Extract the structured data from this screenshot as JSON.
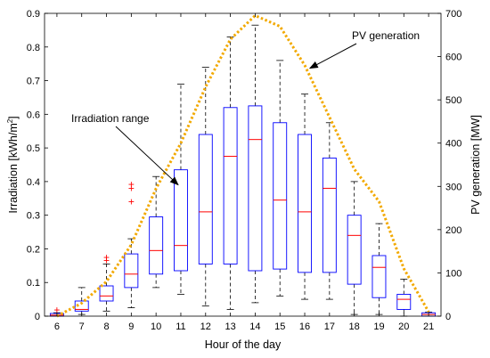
{
  "chart_data": {
    "type": "boxplot",
    "xlabel": "Hour of the day",
    "ylabel_left_prefix": "Irradiation [kWh/m",
    "ylabel_left_sup": "2",
    "ylabel_left_suffix": "]",
    "ylabel_right": "PV generation [MW]",
    "ylim_left": [
      0,
      0.9
    ],
    "ylim_right": [
      0,
      700
    ],
    "xlim": [
      5.5,
      21.5
    ],
    "x_ticks": [
      "6",
      "7",
      "8",
      "9",
      "10",
      "11",
      "12",
      "13",
      "14",
      "15",
      "16",
      "17",
      "18",
      "19",
      "20",
      "21"
    ],
    "y_left_ticks": [
      "0",
      "0.1",
      "0.2",
      "0.3",
      "0.4",
      "0.5",
      "0.6",
      "0.7",
      "0.8",
      "0.9"
    ],
    "y_right_ticks": [
      "0",
      "100",
      "200",
      "300",
      "400",
      "500",
      "600",
      "700"
    ],
    "grid": false,
    "colors": {
      "box": "#0000ff",
      "median": "#ff0000",
      "whisker": "#000000",
      "outlier": "#ff0000",
      "pv_line": "#f2a900"
    },
    "boxes": [
      {
        "hour": 6,
        "min": 0.0,
        "q1": 0.0,
        "median": 0.003,
        "q3": 0.008,
        "max": 0.01
      },
      {
        "hour": 7,
        "min": 0.005,
        "q1": 0.015,
        "median": 0.02,
        "q3": 0.045,
        "max": 0.085
      },
      {
        "hour": 8,
        "min": 0.015,
        "q1": 0.045,
        "median": 0.06,
        "q3": 0.09,
        "max": 0.155
      },
      {
        "hour": 9,
        "min": 0.025,
        "q1": 0.085,
        "median": 0.125,
        "q3": 0.185,
        "max": 0.23
      },
      {
        "hour": 10,
        "min": 0.085,
        "q1": 0.125,
        "median": 0.195,
        "q3": 0.295,
        "max": 0.415
      },
      {
        "hour": 11,
        "min": 0.065,
        "q1": 0.135,
        "median": 0.21,
        "q3": 0.435,
        "max": 0.69
      },
      {
        "hour": 12,
        "min": 0.03,
        "q1": 0.155,
        "median": 0.31,
        "q3": 0.54,
        "max": 0.74
      },
      {
        "hour": 13,
        "min": 0.02,
        "q1": 0.155,
        "median": 0.475,
        "q3": 0.62,
        "max": 0.83
      },
      {
        "hour": 14,
        "min": 0.04,
        "q1": 0.135,
        "median": 0.525,
        "q3": 0.625,
        "max": 0.865
      },
      {
        "hour": 15,
        "min": 0.06,
        "q1": 0.14,
        "median": 0.345,
        "q3": 0.575,
        "max": 0.76
      },
      {
        "hour": 16,
        "min": 0.05,
        "q1": 0.13,
        "median": 0.31,
        "q3": 0.54,
        "max": 0.66
      },
      {
        "hour": 17,
        "min": 0.05,
        "q1": 0.13,
        "median": 0.38,
        "q3": 0.47,
        "max": 0.575
      },
      {
        "hour": 18,
        "min": 0.005,
        "q1": 0.095,
        "median": 0.24,
        "q3": 0.3,
        "max": 0.4
      },
      {
        "hour": 19,
        "min": 0.005,
        "q1": 0.055,
        "median": 0.145,
        "q3": 0.18,
        "max": 0.275
      },
      {
        "hour": 20,
        "min": 0.0,
        "q1": 0.02,
        "median": 0.05,
        "q3": 0.065,
        "max": 0.11
      },
      {
        "hour": 21,
        "min": 0.0,
        "q1": 0.0,
        "median": 0.005,
        "q3": 0.01,
        "max": 0.012
      }
    ],
    "outliers": [
      {
        "hour": 6,
        "value": 0.018
      },
      {
        "hour": 8,
        "value": 0.165
      },
      {
        "hour": 8,
        "value": 0.175
      },
      {
        "hour": 9,
        "value": 0.34
      },
      {
        "hour": 9,
        "value": 0.38
      },
      {
        "hour": 9,
        "value": 0.392
      }
    ],
    "pv_generation": {
      "x": [
        6,
        7,
        8,
        9,
        10,
        11,
        12,
        13,
        14,
        15,
        16,
        17,
        18,
        19,
        20,
        21
      ],
      "y": [
        0,
        30,
        80,
        165,
        295,
        400,
        530,
        640,
        695,
        670,
        580,
        460,
        340,
        265,
        110,
        10
      ]
    },
    "annotations": [
      {
        "text": "PV generation",
        "target_hour": 16.1,
        "target_mw": 575
      },
      {
        "text": "Irradiation range",
        "target_hour": 11.0,
        "target_value": 0.385
      }
    ]
  }
}
